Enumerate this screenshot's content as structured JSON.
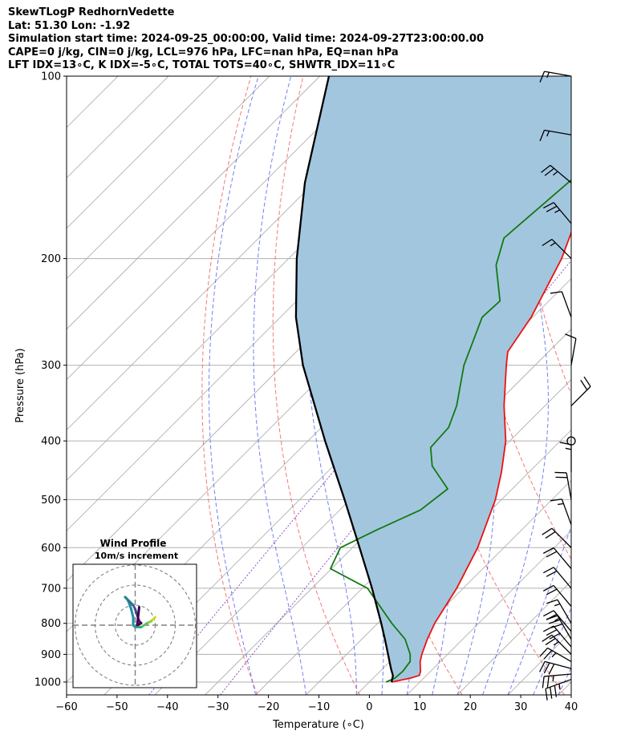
{
  "header": {
    "line1": "SkewTLogP RedhornVedette",
    "line2": "Lat: 51.30   Lon: -1.92",
    "line3": "Simulation start time: 2024-09-25_00:00:00, Valid time: 2024-09-27T23:00:00.00",
    "line4": "CAPE=0 j/kg, CIN=0 j/kg, LCL=976 hPa, LFC=nan hPa, EQ=nan hPa",
    "line5": "LFT IDX=13∘C, K IDX=-5∘C, TOTAL TOTS=40∘C, SHWTR_IDX=11∘C"
  },
  "chart_data": {
    "type": "line",
    "xlabel": "Temperature (∘C)",
    "ylabel": "Pressure (hPa)",
    "xlim": [
      -60,
      40
    ],
    "ylim": [
      1050,
      100
    ],
    "y_scale": "log",
    "skew": true,
    "grid": true,
    "x_ticks": [
      -60,
      -50,
      -40,
      -30,
      -20,
      -10,
      0,
      10,
      20,
      30,
      40
    ],
    "x_tick_labels": [
      "−60",
      "−50",
      "−40",
      "−30",
      "−20",
      "−10",
      "0",
      "10",
      "20",
      "30",
      "40"
    ],
    "y_ticks": [
      1000,
      900,
      800,
      700,
      600,
      500,
      400,
      300,
      200,
      100
    ],
    "y_tick_labels": [
      "1000",
      "900",
      "800",
      "700",
      "600",
      "500",
      "400",
      "300",
      "200",
      "100"
    ],
    "colors": {
      "temperature": "#ee1111",
      "dewpoint": "#117a11",
      "parcel": "#000000",
      "fill": "#a3c6df",
      "dry_adiabat": "#f06060",
      "moist_adiabat": "#5060ee",
      "mixing_ratio": "#9050c0",
      "isotherm": "#b0b0b0"
    },
    "series": [
      {
        "key": "temperature",
        "points": [
          {
            "p": 1000,
            "t": 4.4
          },
          {
            "p": 985,
            "t": 7.4
          },
          {
            "p": 975,
            "t": 8.6
          },
          {
            "p": 960,
            "t": 8.0
          },
          {
            "p": 925,
            "t": 6.0
          },
          {
            "p": 900,
            "t": 4.9
          },
          {
            "p": 850,
            "t": 3.0
          },
          {
            "p": 800,
            "t": 1.3
          },
          {
            "p": 700,
            "t": -1.3
          },
          {
            "p": 600,
            "t": -5.2
          },
          {
            "p": 500,
            "t": -11.2
          },
          {
            "p": 450,
            "t": -15.5
          },
          {
            "p": 400,
            "t": -20.8
          },
          {
            "p": 350,
            "t": -28.1
          },
          {
            "p": 300,
            "t": -35.7
          },
          {
            "p": 285,
            "t": -38.1
          },
          {
            "p": 250,
            "t": -40.3
          },
          {
            "p": 200,
            "t": -45.9
          },
          {
            "p": 175,
            "t": -50.3
          },
          {
            "p": 150,
            "t": -56.2
          },
          {
            "p": 125,
            "t": -63.7
          },
          {
            "p": 100,
            "t": -73.6
          }
        ]
      },
      {
        "key": "dewpoint",
        "points": [
          {
            "p": 1000,
            "t": 3.3
          },
          {
            "p": 985,
            "t": 4.3
          },
          {
            "p": 960,
            "t": 4.5
          },
          {
            "p": 925,
            "t": 4.0
          },
          {
            "p": 900,
            "t": 2.6
          },
          {
            "p": 850,
            "t": -1.4
          },
          {
            "p": 800,
            "t": -7.2
          },
          {
            "p": 700,
            "t": -19.0
          },
          {
            "p": 650,
            "t": -30.2
          },
          {
            "p": 600,
            "t": -32.4
          },
          {
            "p": 560,
            "t": -28.6
          },
          {
            "p": 520,
            "t": -24.0
          },
          {
            "p": 480,
            "t": -22.8
          },
          {
            "p": 440,
            "t": -30.4
          },
          {
            "p": 410,
            "t": -34.4
          },
          {
            "p": 380,
            "t": -34.8
          },
          {
            "p": 350,
            "t": -37.5
          },
          {
            "p": 300,
            "t": -44.1
          },
          {
            "p": 250,
            "t": -50.0
          },
          {
            "p": 235,
            "t": -49.7
          },
          {
            "p": 205,
            "t": -57.6
          },
          {
            "p": 185,
            "t": -61.4
          },
          {
            "p": 130,
            "t": -58.5
          },
          {
            "p": 100,
            "t": -55.0
          }
        ]
      },
      {
        "key": "parcel",
        "points": [
          {
            "p": 1000,
            "t": 4.4
          },
          {
            "p": 976,
            "t": 3.4
          },
          {
            "p": 950,
            "t": 1.6
          },
          {
            "p": 900,
            "t": -1.8
          },
          {
            "p": 850,
            "t": -5.4
          },
          {
            "p": 800,
            "t": -9.3
          },
          {
            "p": 700,
            "t": -18.1
          },
          {
            "p": 600,
            "t": -28.6
          },
          {
            "p": 500,
            "t": -41.1
          },
          {
            "p": 400,
            "t": -56.6
          },
          {
            "p": 300,
            "t": -76.0
          },
          {
            "p": 250,
            "t": -86.9
          },
          {
            "p": 200,
            "t": -98.4
          },
          {
            "p": 150,
            "t": -111.8
          },
          {
            "p": 100,
            "t": -128.2
          }
        ]
      }
    ],
    "wind_barbs": [
      {
        "p": 990,
        "dir": 250,
        "spd": 35
      },
      {
        "p": 970,
        "dir": 265,
        "spd": 25
      },
      {
        "p": 950,
        "dir": 285,
        "spd": 30
      },
      {
        "p": 925,
        "dir": 300,
        "spd": 25
      },
      {
        "p": 900,
        "dir": 315,
        "spd": 25
      },
      {
        "p": 875,
        "dir": 320,
        "spd": 30
      },
      {
        "p": 850,
        "dir": 330,
        "spd": 30
      },
      {
        "p": 825,
        "dir": 320,
        "spd": 25
      },
      {
        "p": 800,
        "dir": 330,
        "spd": 15
      },
      {
        "p": 750,
        "dir": 320,
        "spd": 20
      },
      {
        "p": 700,
        "dir": 320,
        "spd": 20
      },
      {
        "p": 650,
        "dir": 320,
        "spd": 20
      },
      {
        "p": 600,
        "dir": 315,
        "spd": 20
      },
      {
        "p": 550,
        "dir": 340,
        "spd": 15
      },
      {
        "p": 500,
        "dir": 350,
        "spd": 20
      },
      {
        "p": 450,
        "dir": 0,
        "spd": 15
      },
      {
        "p": 400,
        "dir": 0,
        "spd": 0
      },
      {
        "p": 350,
        "dir": 45,
        "spd": 20
      },
      {
        "p": 300,
        "dir": 10,
        "spd": 10
      },
      {
        "p": 250,
        "dir": 340,
        "spd": 10
      },
      {
        "p": 200,
        "dir": 315,
        "spd": 15
      },
      {
        "p": 175,
        "dir": 320,
        "spd": 25
      },
      {
        "p": 150,
        "dir": 310,
        "spd": 25
      },
      {
        "p": 125,
        "dir": 280,
        "spd": 15
      },
      {
        "p": 100,
        "dir": 280,
        "spd": 15
      }
    ],
    "inset": {
      "title": "Wind Profile",
      "subtitle": "10m/s increment",
      "rings": [
        10,
        20,
        30
      ],
      "hodograph": [
        {
          "u": 10,
          "v": 4,
          "c": "#c8e020"
        },
        {
          "u": 8,
          "v": 2,
          "c": "#8cd040"
        },
        {
          "u": 6,
          "v": 1,
          "c": "#5cc060"
        },
        {
          "u": 3,
          "v": -1,
          "c": "#30b080"
        },
        {
          "u": 0,
          "v": -1,
          "c": "#20a08c"
        },
        {
          "u": -1,
          "v": 0,
          "c": "#2090a0"
        },
        {
          "u": -1,
          "v": 4,
          "c": "#2090a0"
        },
        {
          "u": -2,
          "v": 8,
          "c": "#208ca0"
        },
        {
          "u": -3,
          "v": 11,
          "c": "#208ca0"
        },
        {
          "u": -4,
          "v": 13,
          "c": "#2090a0"
        },
        {
          "u": -5,
          "v": 14,
          "c": "#2a8090"
        },
        {
          "u": -3,
          "v": 12,
          "c": "#2a7090"
        },
        {
          "u": -1,
          "v": 10,
          "c": "#3a6090"
        },
        {
          "u": 0,
          "v": 8,
          "c": "#3e4a8a"
        },
        {
          "u": 1,
          "v": 5,
          "c": "#44307a"
        },
        {
          "u": 2,
          "v": 2,
          "c": "#44106a"
        },
        {
          "u": 3,
          "v": 1,
          "c": "#440154"
        },
        {
          "u": 1,
          "v": 0,
          "c": "#440154"
        },
        {
          "u": 2,
          "v": 9,
          "c": "#440154"
        }
      ]
    }
  }
}
